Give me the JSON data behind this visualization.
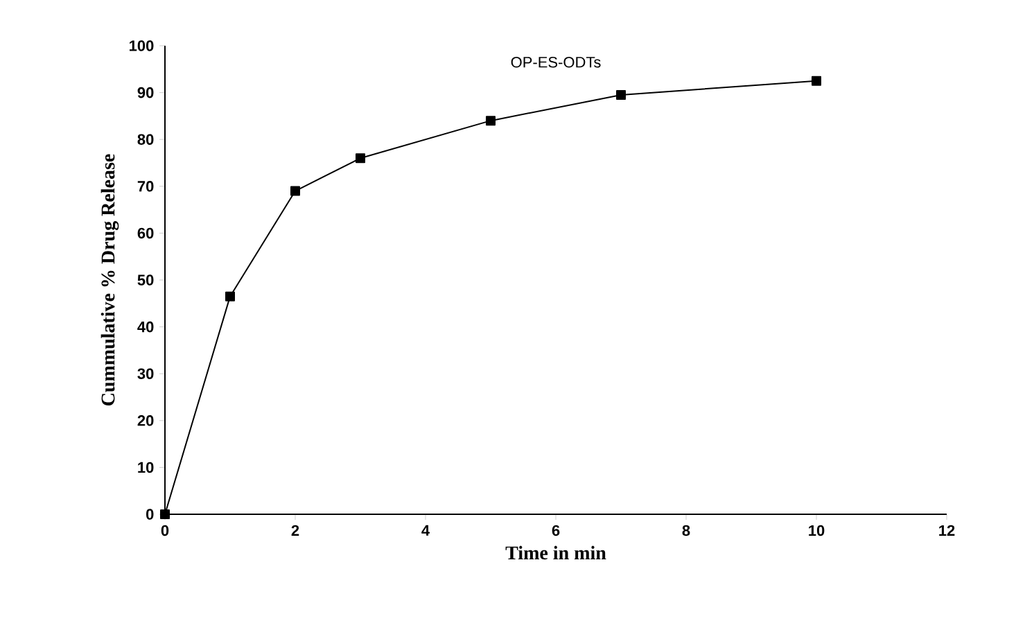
{
  "chart_data": {
    "type": "line",
    "title": "OP-ES-ODTs",
    "xlabel": "Time in min",
    "ylabel": "Cummulative % Drug Release",
    "x": [
      0,
      1,
      2,
      3,
      5,
      7,
      10
    ],
    "series": [
      {
        "color": "#000000",
        "values": [
          0,
          46.5,
          69,
          76,
          84,
          89.5,
          92.5
        ]
      }
    ],
    "xlim": [
      0,
      12
    ],
    "xticks": [
      0,
      2,
      4,
      6,
      8,
      10,
      12
    ],
    "ylim": [
      0,
      100
    ],
    "yticks": [
      0,
      10,
      20,
      30,
      40,
      50,
      60,
      70,
      80,
      90,
      100
    ],
    "grid": false,
    "legend": false,
    "marker": "square",
    "line_style": "solid"
  }
}
